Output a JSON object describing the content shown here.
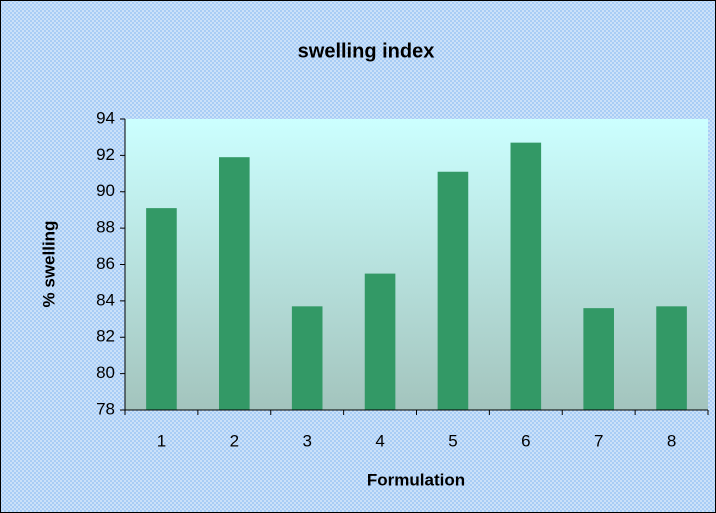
{
  "chart_data": {
    "type": "bar",
    "title": "swelling index",
    "xlabel": "Formulation",
    "ylabel": "% swelling",
    "categories": [
      "1",
      "2",
      "3",
      "4",
      "5",
      "6",
      "7",
      "8"
    ],
    "values": [
      89.1,
      91.9,
      83.7,
      85.5,
      91.1,
      92.7,
      83.6,
      83.7
    ],
    "color": "#339966",
    "ylim": [
      78,
      94
    ],
    "yticks": [
      78,
      80,
      82,
      84,
      86,
      88,
      90,
      92,
      94
    ],
    "grid": false
  }
}
